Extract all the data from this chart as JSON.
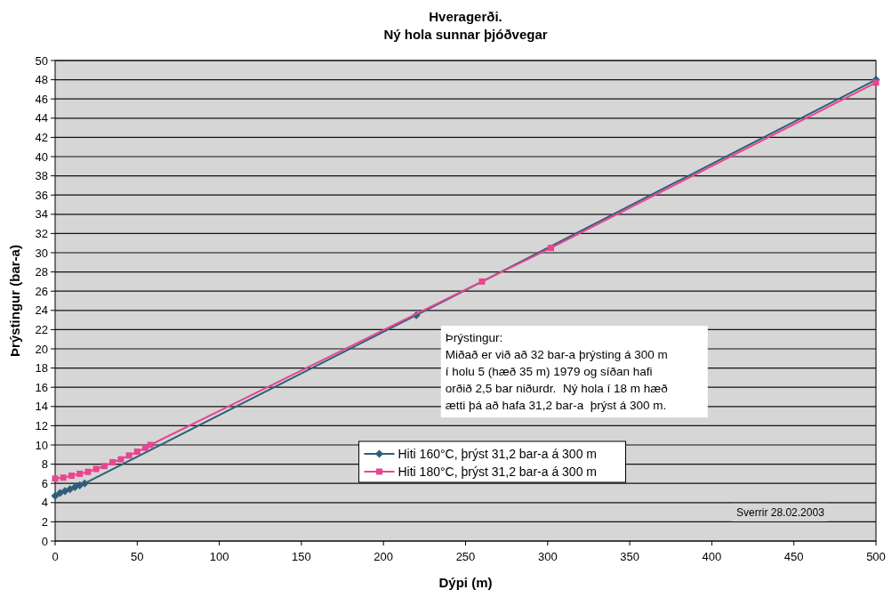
{
  "chart_data": {
    "type": "line",
    "title": "Hveragerði.",
    "subtitle": "Ný hola sunnar þjóðvegar",
    "xlabel": "Dýpi (m)",
    "ylabel": "Þrýstingur (bar-a)",
    "xlim": [
      0,
      500
    ],
    "xticks": [
      0,
      50,
      100,
      150,
      200,
      250,
      300,
      350,
      400,
      450,
      500
    ],
    "ylim": [
      0,
      50
    ],
    "yticks": [
      0,
      2,
      4,
      6,
      8,
      10,
      12,
      14,
      16,
      18,
      20,
      22,
      24,
      26,
      28,
      30,
      32,
      34,
      36,
      38,
      40,
      42,
      44,
      46,
      48,
      50
    ],
    "grid": "y",
    "legend": "bottom",
    "line_style": "solid",
    "series": [
      {
        "name": "Hiti 160°C, þrýst 31,2 bar-a á 300 m",
        "color": "#2e5f7a",
        "marker": "diamond",
        "x": [
          0,
          3,
          6,
          9,
          12,
          15,
          18,
          220,
          500
        ],
        "values": [
          4.7,
          5.0,
          5.2,
          5.4,
          5.6,
          5.8,
          6.0,
          23.5,
          48.0
        ]
      },
      {
        "name": "Hiti 180°C, þrýst 31,2 bar-a á 300 m",
        "color": "#e8468f",
        "marker": "square",
        "x": [
          0,
          5,
          10,
          15,
          20,
          25,
          30,
          35,
          40,
          45,
          50,
          55,
          58,
          260,
          302,
          500
        ],
        "values": [
          6.5,
          6.6,
          6.8,
          7.0,
          7.2,
          7.5,
          7.8,
          8.2,
          8.5,
          8.9,
          9.3,
          9.7,
          10.0,
          27.0,
          30.5,
          47.7
        ]
      }
    ],
    "annotations": [
      "Þrýstingur:\nMiðað er við að 32 bar-a þrýsting á 300 m\ní holu 5 (hæð 35 m) 1979 og síðan hafi\norðið 2,5 bar niðurdr.  Ný hola í 18 m hæð\nætti þá að hafa 31,2 bar-a  þrýst á 300 m.",
      "Sverrir 28.02.2003"
    ]
  }
}
